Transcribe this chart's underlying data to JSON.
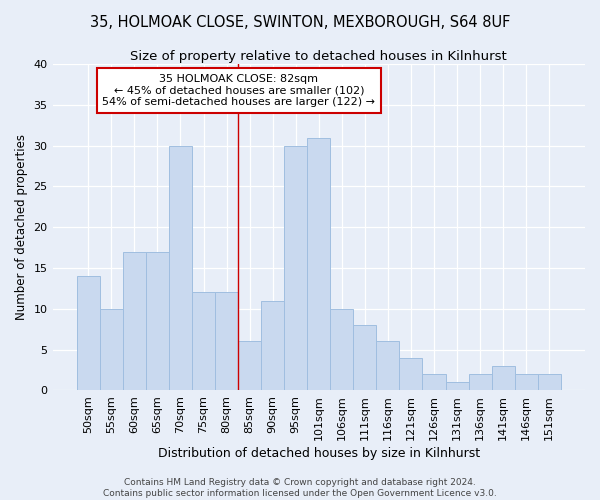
{
  "title1": "35, HOLMOAK CLOSE, SWINTON, MEXBOROUGH, S64 8UF",
  "title2": "Size of property relative to detached houses in Kilnhurst",
  "xlabel": "Distribution of detached houses by size in Kilnhurst",
  "ylabel": "Number of detached properties",
  "footer1": "Contains HM Land Registry data © Crown copyright and database right 2024.",
  "footer2": "Contains public sector information licensed under the Open Government Licence v3.0.",
  "categories": [
    "50sqm",
    "55sqm",
    "60sqm",
    "65sqm",
    "70sqm",
    "75sqm",
    "80sqm",
    "85sqm",
    "90sqm",
    "95sqm",
    "101sqm",
    "106sqm",
    "111sqm",
    "116sqm",
    "121sqm",
    "126sqm",
    "131sqm",
    "136sqm",
    "141sqm",
    "146sqm",
    "151sqm"
  ],
  "values": [
    14,
    10,
    17,
    17,
    30,
    12,
    12,
    6,
    11,
    30,
    31,
    10,
    8,
    6,
    4,
    2,
    1,
    2,
    3,
    2,
    2
  ],
  "bar_color": "#c9d9ef",
  "bar_edge_color": "#a0bee0",
  "background_color": "#e8eef8",
  "grid_color": "#ffffff",
  "annotation_box_text": "35 HOLMOAK CLOSE: 82sqm\n← 45% of detached houses are smaller (102)\n54% of semi-detached houses are larger (122) →",
  "annotation_box_color": "#ffffff",
  "annotation_box_edge": "#cc0000",
  "vline_color": "#cc0000",
  "ylim": [
    0,
    40
  ],
  "yticks": [
    0,
    5,
    10,
    15,
    20,
    25,
    30,
    35,
    40
  ],
  "title1_fontsize": 10.5,
  "title2_fontsize": 9.5,
  "xlabel_fontsize": 9,
  "ylabel_fontsize": 8.5,
  "tick_fontsize": 8,
  "annotation_fontsize": 8,
  "footer_fontsize": 6.5
}
